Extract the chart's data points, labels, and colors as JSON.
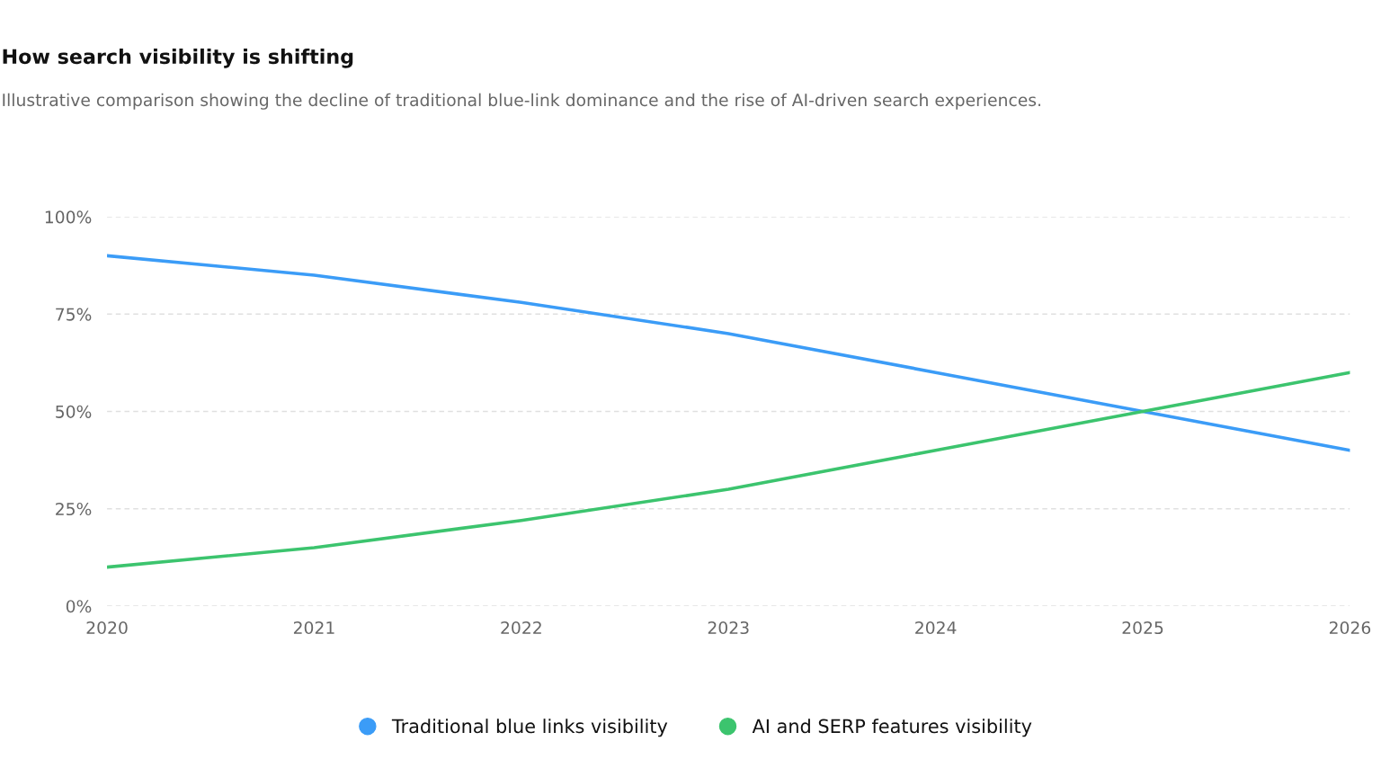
{
  "chart_data": {
    "type": "line",
    "title": "How search visibility is shifting",
    "subtitle": "Illustrative comparison showing the decline of traditional blue-link dominance and the rise of AI-driven search experiences.",
    "x": [
      2020,
      2021,
      2022,
      2023,
      2024,
      2025,
      2026
    ],
    "series": [
      {
        "name": "Traditional blue links visibility",
        "color": "#3b9cf7",
        "values": [
          90,
          85,
          78,
          70,
          60,
          50,
          40
        ]
      },
      {
        "name": "AI and SERP features visibility",
        "color": "#3cc46e",
        "values": [
          10,
          15,
          22,
          30,
          40,
          50,
          60
        ]
      }
    ],
    "xlim": [
      2020,
      2026
    ],
    "xticks": [
      2020,
      2021,
      2022,
      2023,
      2024,
      2025,
      2026
    ],
    "ylim": [
      0,
      100
    ],
    "yticks": [
      {
        "value": 0,
        "label": "0%"
      },
      {
        "value": 25,
        "label": "25%"
      },
      {
        "value": 50,
        "label": "50%"
      },
      {
        "value": 75,
        "label": "75%"
      },
      {
        "value": 100,
        "label": "100%"
      }
    ],
    "grid": "y",
    "legend": "bottom",
    "marker": "none",
    "line_style": "solid"
  }
}
